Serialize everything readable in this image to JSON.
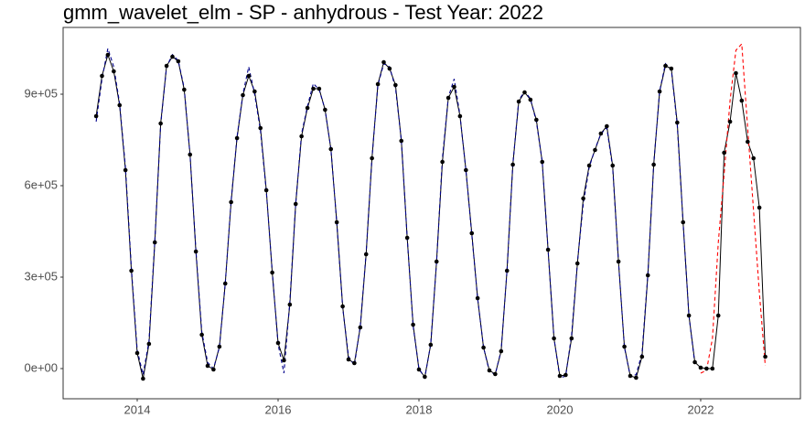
{
  "chart_data": {
    "type": "line",
    "title": "gmm_wavelet_elm - SP - anhydrous - Test Year: 2022",
    "x": [
      2013.417,
      2013.5,
      2013.583,
      2013.667,
      2013.75,
      2013.833,
      2013.917,
      2014.0,
      2014.083,
      2014.167,
      2014.25,
      2014.333,
      2014.417,
      2014.5,
      2014.583,
      2014.667,
      2014.75,
      2014.833,
      2014.917,
      2015.0,
      2015.083,
      2015.167,
      2015.25,
      2015.333,
      2015.417,
      2015.5,
      2015.583,
      2015.667,
      2015.75,
      2015.833,
      2015.917,
      2016.0,
      2016.083,
      2016.167,
      2016.25,
      2016.333,
      2016.417,
      2016.5,
      2016.583,
      2016.667,
      2016.75,
      2016.833,
      2016.917,
      2017.0,
      2017.083,
      2017.167,
      2017.25,
      2017.333,
      2017.417,
      2017.5,
      2017.583,
      2017.667,
      2017.75,
      2017.833,
      2017.917,
      2018.0,
      2018.083,
      2018.167,
      2018.25,
      2018.333,
      2018.417,
      2018.5,
      2018.583,
      2018.667,
      2018.75,
      2018.833,
      2018.917,
      2019.0,
      2019.083,
      2019.167,
      2019.25,
      2019.333,
      2019.417,
      2019.5,
      2019.583,
      2019.667,
      2019.75,
      2019.833,
      2019.917,
      2020.0,
      2020.083,
      2020.167,
      2020.25,
      2020.333,
      2020.417,
      2020.5,
      2020.583,
      2020.667,
      2020.75,
      2020.833,
      2020.917,
      2021.0,
      2021.083,
      2021.167,
      2021.25,
      2021.333,
      2021.417,
      2021.5,
      2021.583,
      2021.667,
      2021.75,
      2021.833,
      2021.917,
      2022.0,
      2022.083,
      2022.167,
      2022.25,
      2022.333,
      2022.417,
      2022.5,
      2022.583,
      2022.667,
      2022.75,
      2022.833,
      2022.917
    ],
    "series": [
      {
        "color": "#000000",
        "dashed": false,
        "markers": true,
        "values": [
          828000,
          960000,
          1029000,
          975000,
          864000,
          651000,
          321000,
          51000,
          -33000,
          81000,
          414000,
          804000,
          993000,
          1023000,
          1008000,
          915000,
          702000,
          384000,
          111000,
          9000,
          -3000,
          72000,
          279000,
          546000,
          756000,
          897000,
          960000,
          909000,
          789000,
          585000,
          315000,
          84000,
          27000,
          210000,
          540000,
          762000,
          855000,
          918000,
          918000,
          849000,
          720000,
          480000,
          204000,
          30000,
          18000,
          135000,
          375000,
          690000,
          933000,
          1005000,
          984000,
          930000,
          747000,
          429000,
          144000,
          -3000,
          -27000,
          78000,
          351000,
          678000,
          888000,
          924000,
          828000,
          651000,
          444000,
          231000,
          69000,
          -6000,
          -18000,
          57000,
          321000,
          669000,
          876000,
          906000,
          882000,
          816000,
          678000,
          390000,
          99000,
          -24000,
          -21000,
          99000,
          345000,
          558000,
          666000,
          717000,
          771000,
          795000,
          666000,
          351000,
          72000,
          -24000,
          -30000,
          39000,
          306000,
          669000,
          909000,
          993000,
          984000,
          807000,
          480000,
          174000,
          21000,
          3000,
          0,
          0,
          174000,
          708000,
          810000,
          969000,
          879000,
          744000,
          690000,
          528000,
          39000
        ]
      },
      {
        "color": "#00008b",
        "dashed": true,
        "markers": false,
        "values": [
          810000,
          950000,
          1050000,
          990000,
          870000,
          660000,
          330000,
          60000,
          -20000,
          90000,
          420000,
          800000,
          990000,
          1030000,
          1010000,
          920000,
          700000,
          390000,
          120000,
          20000,
          0,
          70000,
          280000,
          550000,
          760000,
          900000,
          990000,
          900000,
          780000,
          580000,
          320000,
          80000,
          -15000,
          220000,
          540000,
          770000,
          860000,
          935000,
          915000,
          850000,
          720000,
          480000,
          200000,
          40000,
          10000,
          140000,
          380000,
          690000,
          930000,
          1000000,
          990000,
          920000,
          750000,
          430000,
          140000,
          0,
          -30000,
          80000,
          350000,
          690000,
          890000,
          950000,
          830000,
          650000,
          440000,
          230000,
          70000,
          -10000,
          -20000,
          60000,
          320000,
          670000,
          880000,
          910000,
          885000,
          810000,
          680000,
          390000,
          100000,
          -30000,
          -25000,
          110000,
          350000,
          540000,
          660000,
          720000,
          770000,
          790000,
          660000,
          350000,
          70000,
          -25000,
          -20000,
          50000,
          310000,
          670000,
          910000,
          1000000,
          980000,
          800000,
          480000,
          175000,
          15000,
          null,
          null,
          null,
          null,
          null,
          null,
          null,
          null,
          null,
          null,
          null,
          null
        ]
      },
      {
        "color": "#ff0000",
        "dashed": true,
        "markers": false,
        "values": [
          null,
          null,
          null,
          null,
          null,
          null,
          null,
          null,
          null,
          null,
          null,
          null,
          null,
          null,
          null,
          null,
          null,
          null,
          null,
          null,
          null,
          null,
          null,
          null,
          null,
          null,
          null,
          null,
          null,
          null,
          null,
          null,
          null,
          null,
          null,
          null,
          null,
          null,
          null,
          null,
          null,
          null,
          null,
          null,
          null,
          null,
          null,
          null,
          null,
          null,
          null,
          null,
          null,
          null,
          null,
          null,
          null,
          null,
          null,
          null,
          null,
          null,
          null,
          null,
          null,
          null,
          null,
          null,
          null,
          null,
          null,
          null,
          null,
          null,
          null,
          null,
          null,
          null,
          null,
          null,
          null,
          null,
          null,
          null,
          null,
          null,
          null,
          null,
          null,
          null,
          null,
          null,
          null,
          null,
          null,
          null,
          null,
          null,
          null,
          null,
          null,
          null,
          null,
          -15000,
          -6000,
          99000,
          414000,
          639000,
          879000,
          1044000,
          1065000,
          789000,
          519000,
          249000,
          9000
        ]
      }
    ],
    "xlim": [
      2012.948,
      2023.416
    ],
    "ylim": [
      -99000,
      1119000
    ],
    "xticks": [
      2014,
      2016,
      2018,
      2020,
      2022
    ],
    "yticks": [
      {
        "value": 0,
        "label": "0e+00"
      },
      {
        "value": 300000,
        "label": "3e+05"
      },
      {
        "value": 600000,
        "label": "6e+05"
      },
      {
        "value": 900000,
        "label": "9e+05"
      }
    ],
    "grid": false
  }
}
